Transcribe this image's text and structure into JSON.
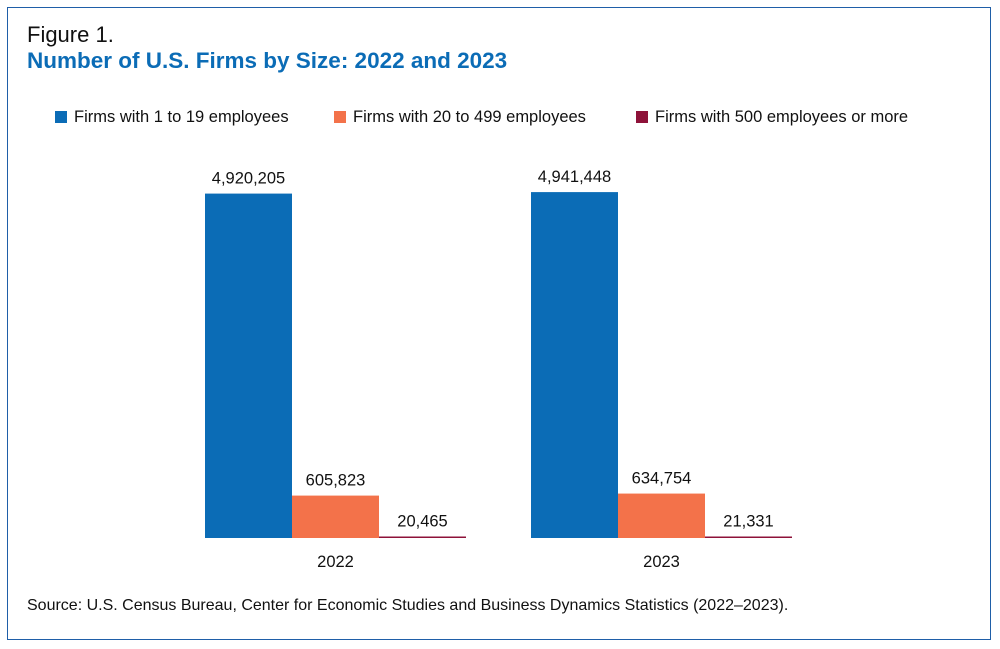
{
  "figure_label": "Figure 1.",
  "chart_data": {
    "type": "bar",
    "title": "Number of U.S. Firms by Size: 2022 and 2023",
    "categories": [
      "2022",
      "2023"
    ],
    "series": [
      {
        "name": "Firms with 1 to 19 employees",
        "values": [
          4920205,
          4941448
        ],
        "labels": [
          "4,920,205",
          "4,941,448"
        ],
        "color": "#0b6cb6"
      },
      {
        "name": "Firms with 20 to 499 employees",
        "values": [
          605823,
          634754
        ],
        "labels": [
          "605,823",
          "634,754"
        ],
        "color": "#f3724a"
      },
      {
        "name": "Firms with 500 employees or more",
        "values": [
          20465,
          21331
        ],
        "labels": [
          "20,465",
          "21,331"
        ],
        "color": "#8e1239"
      }
    ],
    "ylim": [
      0,
      5000000
    ],
    "grid": false,
    "y_axis_visible": false,
    "legend_position": "top"
  },
  "source": "Source: U.S. Census Bureau, Center for Economic Studies and Business Dynamics Statistics (2022–2023)."
}
